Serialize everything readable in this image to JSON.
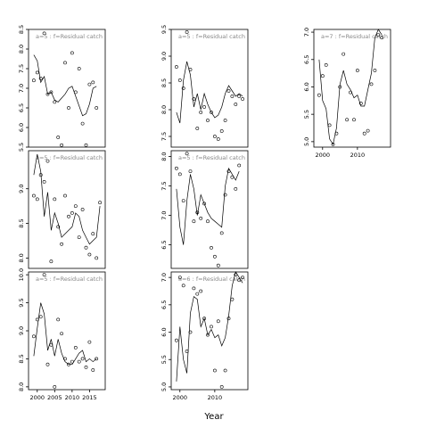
{
  "chart_data": {
    "type": "line",
    "xlabel": "Year",
    "panels": [
      {
        "label": "a=5 : f=Residual catch",
        "ylim": [
          5.5,
          8.5
        ],
        "yticks": [
          5.5,
          6.0,
          6.5,
          7.0,
          7.5,
          8.0,
          8.5
        ],
        "points": [
          [
            1999,
            7.2
          ],
          [
            2000,
            7.4
          ],
          [
            2001,
            7.25
          ],
          [
            2002,
            8.4
          ],
          [
            2003,
            6.85
          ],
          [
            2004,
            6.9
          ],
          [
            2005,
            6.65
          ],
          [
            2006,
            5.75
          ],
          [
            2007,
            5.55
          ],
          [
            2008,
            7.65
          ],
          [
            2009,
            6.5
          ],
          [
            2010,
            7.9
          ],
          [
            2011,
            6.9
          ],
          [
            2012,
            7.5
          ],
          [
            2013,
            6.1
          ],
          [
            2014,
            5.55
          ],
          [
            2015,
            7.1
          ],
          [
            2016,
            7.15
          ],
          [
            2017,
            6.5
          ]
        ],
        "fit": [
          [
            1999,
            7.85
          ],
          [
            2000,
            7.7
          ],
          [
            2001,
            7.15
          ],
          [
            2002,
            7.3
          ],
          [
            2003,
            6.85
          ],
          [
            2004,
            6.9
          ],
          [
            2005,
            6.7
          ],
          [
            2006,
            6.65
          ],
          [
            2007,
            6.75
          ],
          [
            2008,
            6.85
          ],
          [
            2009,
            7.0
          ],
          [
            2010,
            7.05
          ],
          [
            2011,
            6.8
          ],
          [
            2012,
            6.55
          ],
          [
            2013,
            6.3
          ],
          [
            2014,
            6.35
          ],
          [
            2015,
            6.6
          ],
          [
            2016,
            7.0
          ],
          [
            2017,
            7.05
          ]
        ]
      },
      {
        "label": "a=5 : f=Residual catch",
        "ylim": [
          7.3,
          9.5
        ],
        "yticks": [
          7.5,
          8.0,
          8.5,
          9.0,
          9.5
        ],
        "points": [
          [
            1999,
            8.8
          ],
          [
            2000,
            8.55
          ],
          [
            2001,
            8.4
          ],
          [
            2002,
            9.45
          ],
          [
            2003,
            8.75
          ],
          [
            2004,
            8.2
          ],
          [
            2005,
            7.65
          ],
          [
            2006,
            7.95
          ],
          [
            2007,
            8.05
          ],
          [
            2008,
            7.8
          ],
          [
            2009,
            7.95
          ],
          [
            2010,
            7.5
          ],
          [
            2011,
            7.45
          ],
          [
            2012,
            7.6
          ],
          [
            2013,
            7.8
          ],
          [
            2014,
            8.35
          ],
          [
            2015,
            8.25
          ],
          [
            2016,
            8.1
          ],
          [
            2017,
            8.25
          ],
          [
            2018,
            8.2
          ]
        ],
        "fit": [
          [
            1999,
            7.95
          ],
          [
            2000,
            7.75
          ],
          [
            2001,
            8.55
          ],
          [
            2002,
            8.9
          ],
          [
            2003,
            8.65
          ],
          [
            2004,
            8.05
          ],
          [
            2005,
            8.3
          ],
          [
            2006,
            8.0
          ],
          [
            2007,
            8.3
          ],
          [
            2008,
            8.1
          ],
          [
            2009,
            7.95
          ],
          [
            2010,
            7.85
          ],
          [
            2011,
            7.9
          ],
          [
            2012,
            8.05
          ],
          [
            2013,
            8.3
          ],
          [
            2014,
            8.45
          ],
          [
            2015,
            8.35
          ],
          [
            2016,
            8.25
          ],
          [
            2017,
            8.3
          ],
          [
            2018,
            8.25
          ]
        ]
      },
      {
        "label": "a=7 : f=Residual catch",
        "ylim": [
          4.9,
          7.05
        ],
        "yticks": [
          5.0,
          5.5,
          6.0,
          6.5,
          7.0
        ],
        "xticks": [
          2000,
          2010
        ],
        "points": [
          [
            1999,
            5.85
          ],
          [
            2000,
            6.2
          ],
          [
            2001,
            6.4
          ],
          [
            2002,
            5.3
          ],
          [
            2003,
            4.95
          ],
          [
            2004,
            5.15
          ],
          [
            2005,
            6.0
          ],
          [
            2006,
            6.6
          ],
          [
            2007,
            5.4
          ],
          [
            2008,
            5.9
          ],
          [
            2009,
            5.4
          ],
          [
            2010,
            6.3
          ],
          [
            2011,
            5.7
          ],
          [
            2012,
            5.15
          ],
          [
            2013,
            5.2
          ],
          [
            2014,
            6.05
          ],
          [
            2015,
            6.3
          ],
          [
            2016,
            6.95
          ],
          [
            2017,
            6.9
          ]
        ],
        "fit": [
          [
            1999,
            6.5
          ],
          [
            2000,
            5.75
          ],
          [
            2001,
            5.6
          ],
          [
            2002,
            5.05
          ],
          [
            2003,
            4.95
          ],
          [
            2004,
            5.25
          ],
          [
            2005,
            6.05
          ],
          [
            2006,
            6.3
          ],
          [
            2007,
            6.05
          ],
          [
            2008,
            5.95
          ],
          [
            2009,
            5.8
          ],
          [
            2010,
            5.85
          ],
          [
            2011,
            5.65
          ],
          [
            2012,
            5.65
          ],
          [
            2013,
            5.95
          ],
          [
            2014,
            6.25
          ],
          [
            2015,
            6.9
          ],
          [
            2016,
            7.05
          ],
          [
            2017,
            6.95
          ]
        ]
      },
      {
        "label": "a=5 : f=Residual catch",
        "ylim": [
          7.85,
          9.55
        ],
        "yticks": [
          8.0,
          8.5,
          9.0
        ],
        "points": [
          [
            1999,
            8.9
          ],
          [
            2000,
            8.85
          ],
          [
            2001,
            9.2
          ],
          [
            2002,
            9.1
          ],
          [
            2003,
            9.4
          ],
          [
            2004,
            7.95
          ],
          [
            2005,
            8.85
          ],
          [
            2006,
            8.45
          ],
          [
            2007,
            8.2
          ],
          [
            2008,
            8.9
          ],
          [
            2009,
            8.6
          ],
          [
            2010,
            8.65
          ],
          [
            2011,
            8.75
          ],
          [
            2012,
            8.3
          ],
          [
            2013,
            8.7
          ],
          [
            2014,
            8.15
          ],
          [
            2015,
            8.05
          ],
          [
            2016,
            8.35
          ],
          [
            2017,
            8.0
          ],
          [
            2018,
            8.8
          ]
        ],
        "fit": [
          [
            1999,
            9.2
          ],
          [
            2000,
            9.5
          ],
          [
            2001,
            9.25
          ],
          [
            2002,
            8.6
          ],
          [
            2003,
            8.95
          ],
          [
            2004,
            8.4
          ],
          [
            2005,
            8.65
          ],
          [
            2006,
            8.5
          ],
          [
            2007,
            8.3
          ],
          [
            2008,
            8.35
          ],
          [
            2009,
            8.4
          ],
          [
            2010,
            8.45
          ],
          [
            2011,
            8.65
          ],
          [
            2012,
            8.6
          ],
          [
            2013,
            8.4
          ],
          [
            2014,
            8.3
          ],
          [
            2015,
            8.2
          ],
          [
            2016,
            8.25
          ],
          [
            2017,
            8.3
          ],
          [
            2018,
            8.75
          ]
        ]
      },
      {
        "label": "a=5 : f=Residual catch",
        "ylim": [
          6.1,
          8.1
        ],
        "yticks": [
          6.5,
          7.0,
          7.5,
          8.0
        ],
        "points": [
          [
            1999,
            7.8
          ],
          [
            2000,
            7.7
          ],
          [
            2001,
            7.25
          ],
          [
            2002,
            8.05
          ],
          [
            2003,
            7.75
          ],
          [
            2004,
            6.9
          ],
          [
            2005,
            7.05
          ],
          [
            2006,
            6.95
          ],
          [
            2007,
            7.2
          ],
          [
            2008,
            6.9
          ],
          [
            2009,
            6.45
          ],
          [
            2010,
            6.3
          ],
          [
            2011,
            6.15
          ],
          [
            2012,
            6.7
          ],
          [
            2013,
            7.35
          ],
          [
            2014,
            7.75
          ],
          [
            2015,
            7.65
          ],
          [
            2016,
            7.45
          ],
          [
            2017,
            7.85
          ]
        ],
        "fit": [
          [
            1999,
            7.45
          ],
          [
            2000,
            6.8
          ],
          [
            2001,
            6.5
          ],
          [
            2002,
            7.25
          ],
          [
            2003,
            7.7
          ],
          [
            2004,
            7.45
          ],
          [
            2005,
            7.0
          ],
          [
            2006,
            7.35
          ],
          [
            2007,
            7.2
          ],
          [
            2008,
            7.05
          ],
          [
            2009,
            6.95
          ],
          [
            2010,
            6.9
          ],
          [
            2011,
            6.85
          ],
          [
            2012,
            6.8
          ],
          [
            2013,
            7.5
          ],
          [
            2014,
            7.8
          ],
          [
            2015,
            7.7
          ],
          [
            2016,
            7.6
          ],
          [
            2017,
            7.75
          ]
        ]
      },
      {
        "label": "a=5 : f=Residual catch",
        "ylim": [
          7.95,
          10.05
        ],
        "yticks": [
          8.0,
          8.5,
          9.0,
          9.5,
          10.0
        ],
        "xticks": [
          2000,
          2005,
          2010,
          2015
        ],
        "points": [
          [
            1999,
            8.9
          ],
          [
            2000,
            9.2
          ],
          [
            2001,
            9.25
          ],
          [
            2002,
            10.0
          ],
          [
            2003,
            8.4
          ],
          [
            2004,
            8.75
          ],
          [
            2005,
            8.0
          ],
          [
            2006,
            9.2
          ],
          [
            2007,
            8.95
          ],
          [
            2008,
            8.5
          ],
          [
            2009,
            8.4
          ],
          [
            2010,
            8.45
          ],
          [
            2011,
            8.7
          ],
          [
            2012,
            8.45
          ],
          [
            2013,
            8.5
          ],
          [
            2014,
            8.35
          ],
          [
            2015,
            8.8
          ],
          [
            2016,
            8.3
          ],
          [
            2017,
            8.5
          ]
        ],
        "fit": [
          [
            1999,
            8.55
          ],
          [
            2000,
            9.05
          ],
          [
            2001,
            9.5
          ],
          [
            2002,
            9.3
          ],
          [
            2003,
            8.65
          ],
          [
            2004,
            8.85
          ],
          [
            2005,
            8.55
          ],
          [
            2006,
            8.85
          ],
          [
            2007,
            8.6
          ],
          [
            2008,
            8.45
          ],
          [
            2009,
            8.4
          ],
          [
            2010,
            8.4
          ],
          [
            2011,
            8.5
          ],
          [
            2012,
            8.6
          ],
          [
            2013,
            8.65
          ],
          [
            2014,
            8.45
          ],
          [
            2015,
            8.5
          ],
          [
            2016,
            8.45
          ],
          [
            2017,
            8.5
          ]
        ]
      },
      {
        "label": "a=6 : f=Residual catch",
        "ylim": [
          4.95,
          7.1
        ],
        "yticks": [
          5.0,
          5.5,
          6.0,
          6.5,
          7.0
        ],
        "xticks": [
          2000,
          2010
        ],
        "points": [
          [
            1999,
            5.85
          ],
          [
            2000,
            7.0
          ],
          [
            2001,
            6.85
          ],
          [
            2002,
            5.65
          ],
          [
            2003,
            6.0
          ],
          [
            2004,
            6.8
          ],
          [
            2005,
            6.7
          ],
          [
            2006,
            6.75
          ],
          [
            2007,
            6.25
          ],
          [
            2008,
            5.95
          ],
          [
            2009,
            6.1
          ],
          [
            2010,
            5.3
          ],
          [
            2011,
            6.2
          ],
          [
            2012,
            5.0
          ],
          [
            2013,
            5.3
          ],
          [
            2014,
            6.25
          ],
          [
            2015,
            6.6
          ],
          [
            2016,
            7.05
          ],
          [
            2017,
            6.95
          ],
          [
            2018,
            7.0
          ]
        ],
        "fit": [
          [
            1999,
            5.1
          ],
          [
            2000,
            6.1
          ],
          [
            2001,
            5.5
          ],
          [
            2002,
            5.25
          ],
          [
            2003,
            6.35
          ],
          [
            2004,
            6.65
          ],
          [
            2005,
            6.6
          ],
          [
            2006,
            6.1
          ],
          [
            2007,
            6.25
          ],
          [
            2008,
            5.95
          ],
          [
            2009,
            6.05
          ],
          [
            2010,
            5.9
          ],
          [
            2011,
            5.95
          ],
          [
            2012,
            5.75
          ],
          [
            2013,
            5.9
          ],
          [
            2014,
            6.3
          ],
          [
            2015,
            6.85
          ],
          [
            2016,
            7.1
          ],
          [
            2017,
            7.0
          ],
          [
            2018,
            6.9
          ]
        ]
      }
    ]
  }
}
